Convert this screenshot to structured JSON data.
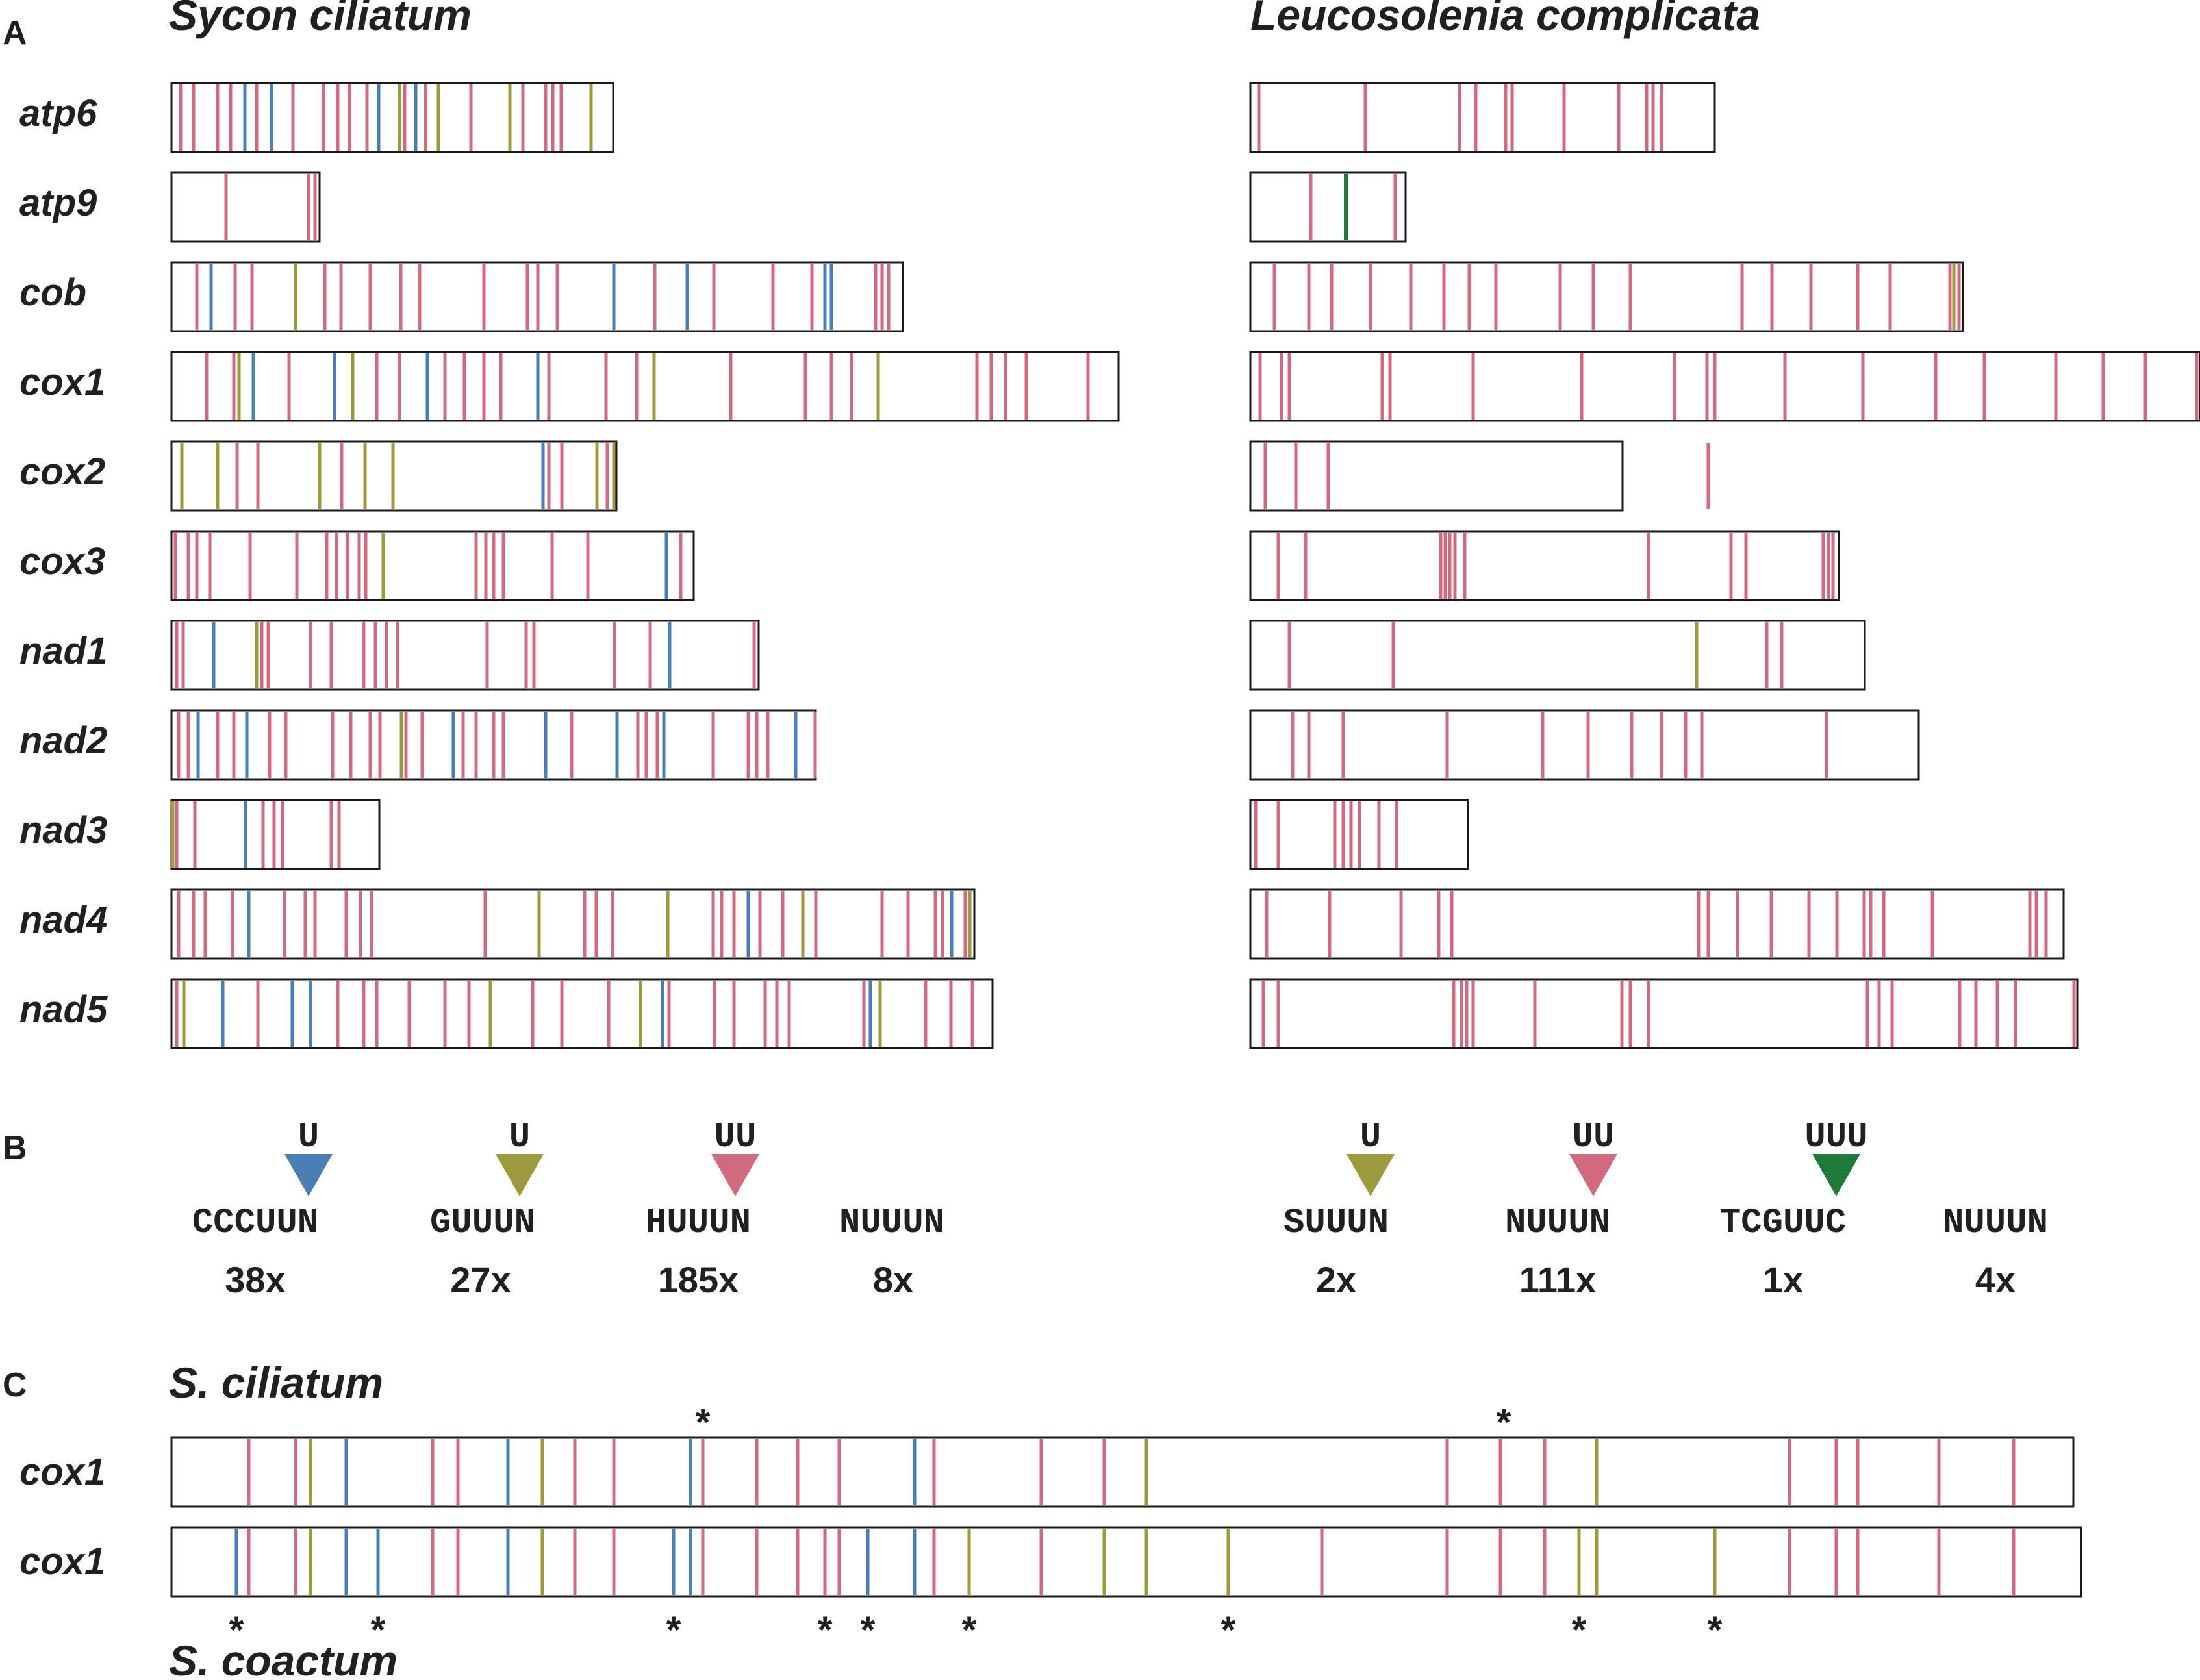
{
  "colors": {
    "blue": "#4a7fb5",
    "olive": "#9c9a3a",
    "pink": "#d26a7f",
    "green": "#1f7a3a"
  },
  "panels": {
    "a_label": "A",
    "b_label": "B",
    "c_label": "C"
  },
  "species": {
    "left": "Sycon ciliatum",
    "right": "Leucosolenia complicata",
    "c_top": "S. ciliatum",
    "c_bottom": "S. coactum"
  },
  "genes": [
    "atp6",
    "atp9",
    "cob",
    "cox1",
    "cox2",
    "cox3",
    "nad1",
    "nad2",
    "nad3",
    "nad4",
    "nad5"
  ],
  "panel_c_genes": [
    "cox1",
    "cox1"
  ],
  "legend": {
    "left": [
      {
        "insert": "U",
        "color": "blue",
        "motif": "CCCUUN",
        "count": "38x"
      },
      {
        "insert": "U",
        "color": "olive",
        "motif": "GUUUN",
        "count": "27x"
      },
      {
        "insert": "UU",
        "color": "pink",
        "motif": "HUUUN",
        "count": "185x"
      },
      {
        "insert": "",
        "color": "",
        "motif": "NUUUN",
        "count": "8x"
      }
    ],
    "right": [
      {
        "insert": "U",
        "color": "olive",
        "motif": "SUUUN",
        "count": "2x"
      },
      {
        "insert": "UU",
        "color": "pink",
        "motif": "NUUUN",
        "count": "111x"
      },
      {
        "insert": "UUU",
        "color": "green",
        "motif": "TCGUUC",
        "count": "1x"
      },
      {
        "insert": "",
        "color": "",
        "motif": "NUUUN",
        "count": "4x"
      }
    ]
  },
  "stars": {
    "top": "*",
    "bottom": "*"
  }
}
